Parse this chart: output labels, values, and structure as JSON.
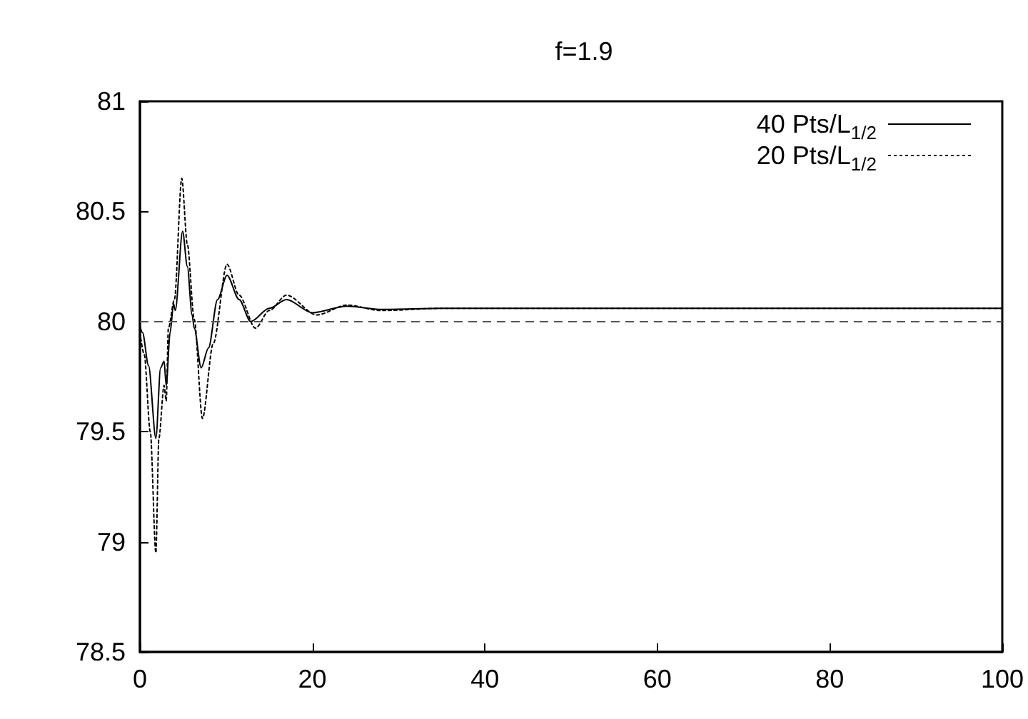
{
  "chart_data": {
    "type": "line",
    "title": "f=1.9",
    "xlim": [
      0,
      100
    ],
    "xticks": [
      0,
      20,
      40,
      60,
      80,
      100
    ],
    "ylim": [
      78.5,
      81
    ],
    "yticks": [
      78.5,
      79,
      79.5,
      80,
      80.5,
      81
    ],
    "grid": false,
    "legend": "top right",
    "marker": "none",
    "ref_lines": [
      {
        "axis": "y",
        "value": 80,
        "label": null,
        "color": "#555555",
        "line_style": "dashed"
      }
    ],
    "series": [
      {
        "name": "40 Pts/L$_{1/2}$",
        "color": "#000000",
        "line_style": "solid",
        "x": [
          0,
          0.3,
          1,
          1.85,
          2.4,
          2.8,
          3.05,
          3.5,
          3.9,
          4.1,
          4.95,
          5.5,
          6.05,
          6.3,
          7.1,
          7.95,
          9,
          10.1,
          11.5,
          12.85,
          15,
          17,
          20,
          24,
          28,
          35,
          50,
          100
        ],
        "values": [
          79.98,
          79.95,
          79.8,
          79.47,
          79.79,
          79.82,
          79.71,
          79.95,
          80.08,
          80.05,
          80.41,
          80.25,
          80.03,
          79.97,
          79.79,
          79.88,
          80.1,
          80.21,
          80.1,
          80.0,
          80.06,
          80.1,
          80.04,
          80.07,
          80.055,
          80.06,
          80.06,
          80.06
        ]
      },
      {
        "name": "20 Pts/L$_{1/2}$",
        "color": "#000000",
        "line_style": "dotted",
        "x": [
          0,
          0.5,
          1.2,
          1.85,
          2.2,
          2.8,
          3.05,
          3.3,
          4,
          4.85,
          5.5,
          6.3,
          7.25,
          8.5,
          10.1,
          11.5,
          13.4,
          15,
          17,
          20.5,
          24,
          28,
          35,
          50,
          100
        ],
        "values": [
          79.95,
          79.85,
          79.5,
          78.95,
          79.47,
          79.71,
          79.64,
          79.97,
          80.1,
          80.65,
          80.35,
          80.01,
          79.56,
          79.9,
          80.26,
          80.12,
          79.97,
          80.05,
          80.12,
          80.03,
          80.075,
          80.05,
          80.06,
          80.06,
          80.06
        ]
      }
    ]
  }
}
